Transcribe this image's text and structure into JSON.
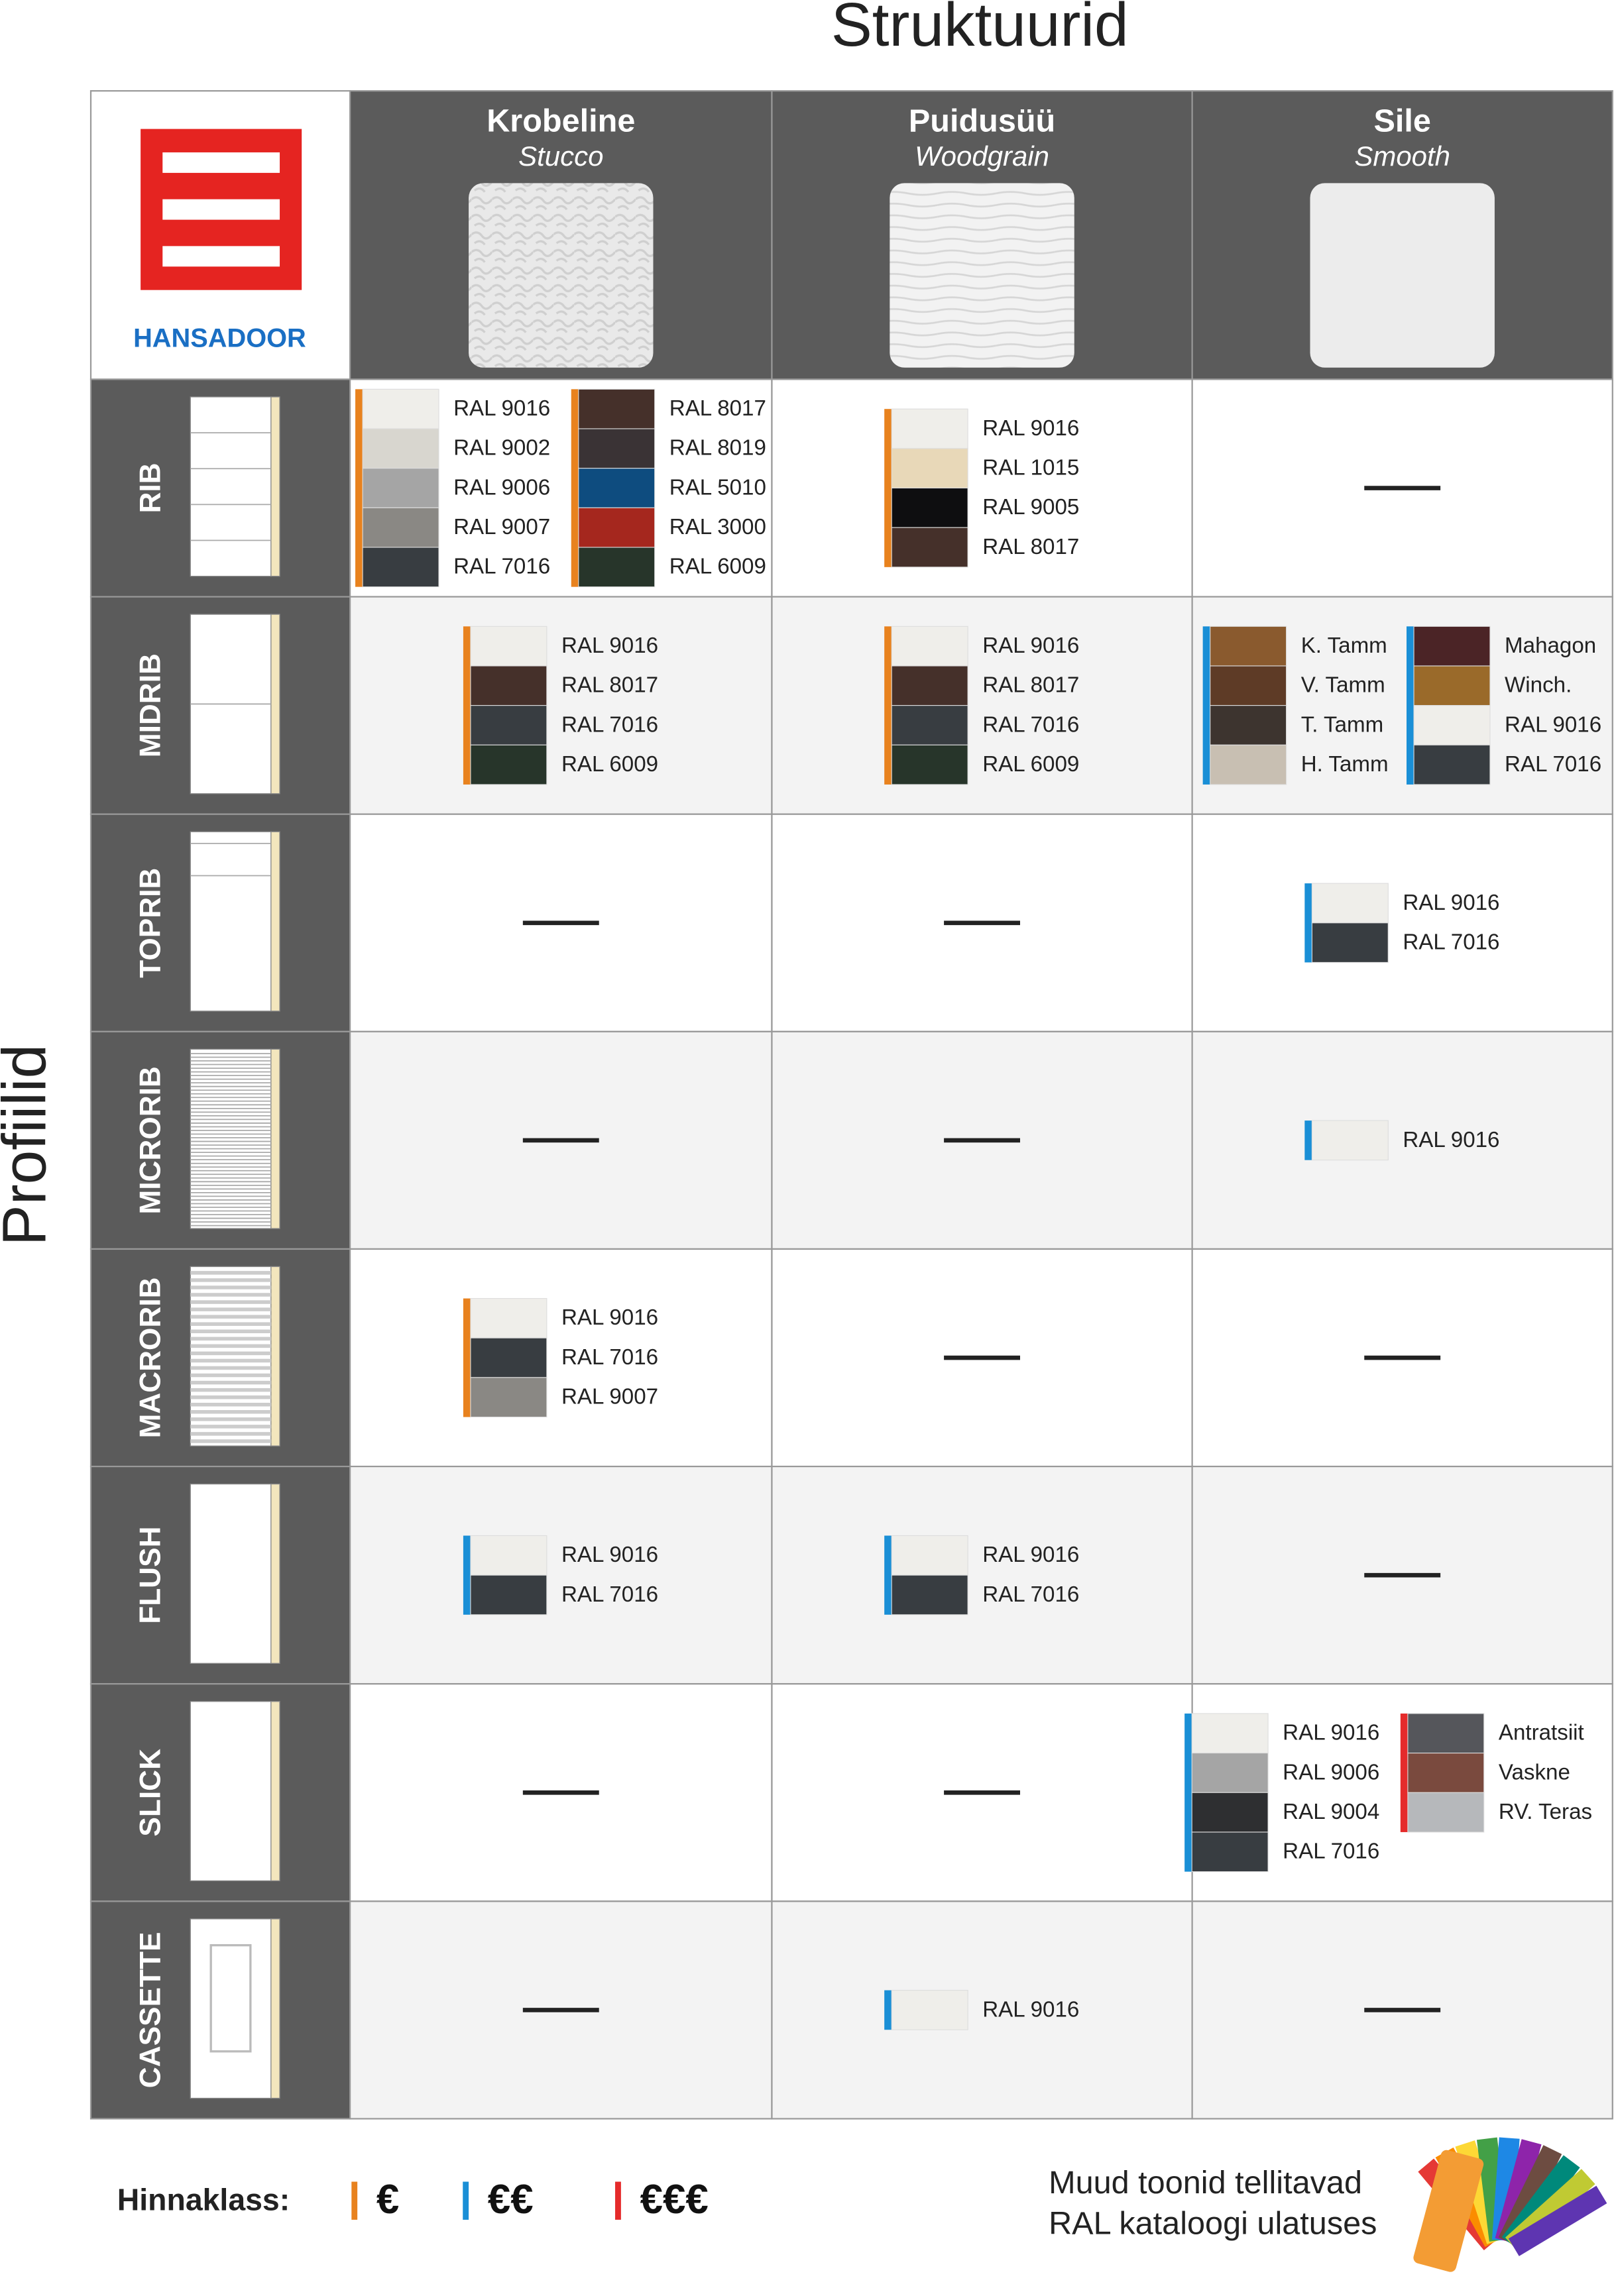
{
  "title": "Struktuurid",
  "side_label": "Profiilid",
  "logo": "HANSADOOR",
  "columns": [
    {
      "name": "Krobeline",
      "sub": "Stucco"
    },
    {
      "name": "Puidusüü",
      "sub": "Woodgrain"
    },
    {
      "name": "Sile",
      "sub": "Smooth"
    }
  ],
  "rows": [
    {
      "name": "RIB",
      "cells": [
        [
          {
            "tier": 0,
            "swatches": [
              {
                "label": "RAL 9016",
                "color": "#efeeea"
              },
              {
                "label": "RAL 9002",
                "color": "#d8d6cf"
              },
              {
                "label": "RAL 9006",
                "color": "#a5a5a5"
              },
              {
                "label": "RAL 9007",
                "color": "#8a8884"
              },
              {
                "label": "RAL 7016",
                "color": "#383d41"
              }
            ]
          },
          {
            "tier": 0,
            "swatches": [
              {
                "label": "RAL 8017",
                "color": "#45302a"
              },
              {
                "label": "RAL 8019",
                "color": "#3a3335"
              },
              {
                "label": "RAL 5010",
                "color": "#0e4c7f"
              },
              {
                "label": "RAL 3000",
                "color": "#a5271e"
              },
              {
                "label": "RAL 6009",
                "color": "#27352a"
              }
            ]
          }
        ],
        [
          {
            "tier": 0,
            "swatches": [
              {
                "label": "RAL 9016",
                "color": "#efeeea"
              },
              {
                "label": "RAL 1015",
                "color": "#e8d8b8"
              },
              {
                "label": "RAL 9005",
                "color": "#0e0e10"
              },
              {
                "label": "RAL 8017",
                "color": "#45302a"
              }
            ]
          }
        ],
        null
      ]
    },
    {
      "name": "MIDRIB",
      "cells": [
        [
          {
            "tier": 0,
            "swatches": [
              {
                "label": "RAL 9016",
                "color": "#efeeea"
              },
              {
                "label": "RAL 8017",
                "color": "#45302a"
              },
              {
                "label": "RAL 7016",
                "color": "#383d41"
              },
              {
                "label": "RAL 6009",
                "color": "#27352a"
              }
            ]
          }
        ],
        [
          {
            "tier": 0,
            "swatches": [
              {
                "label": "RAL 9016",
                "color": "#efeeea"
              },
              {
                "label": "RAL 8017",
                "color": "#45302a"
              },
              {
                "label": "RAL 7016",
                "color": "#383d41"
              },
              {
                "label": "RAL 6009",
                "color": "#27352a"
              }
            ]
          }
        ],
        [
          {
            "tier": 1,
            "swatches": [
              {
                "label": "K. Tamm",
                "color": "#8a5a2e"
              },
              {
                "label": "V. Tamm",
                "color": "#5e3b26"
              },
              {
                "label": "T. Tamm",
                "color": "#3d342f"
              },
              {
                "label": "H. Tamm",
                "color": "#c8bfb2"
              }
            ]
          },
          {
            "tier": 1,
            "swatches": [
              {
                "label": "Mahagon",
                "color": "#4b2426"
              },
              {
                "label": "Winch.",
                "color": "#9a6a2a"
              },
              {
                "label": "RAL 9016",
                "color": "#efeeea"
              },
              {
                "label": "RAL 7016",
                "color": "#383d41"
              }
            ]
          }
        ]
      ]
    },
    {
      "name": "TOPRIB",
      "cells": [
        null,
        null,
        [
          {
            "tier": 1,
            "swatches": [
              {
                "label": "RAL 9016",
                "color": "#efeeea"
              },
              {
                "label": "RAL 7016",
                "color": "#383d41"
              }
            ]
          }
        ]
      ]
    },
    {
      "name": "MICRORIB",
      "cells": [
        null,
        null,
        [
          {
            "tier": 1,
            "swatches": [
              {
                "label": "RAL 9016",
                "color": "#efeeea"
              }
            ]
          }
        ]
      ]
    },
    {
      "name": "MACRORIB",
      "cells": [
        [
          {
            "tier": 0,
            "swatches": [
              {
                "label": "RAL 9016",
                "color": "#efeeea"
              },
              {
                "label": "RAL 7016",
                "color": "#383d41"
              },
              {
                "label": "RAL 9007",
                "color": "#8a8884"
              }
            ]
          }
        ],
        null,
        null
      ]
    },
    {
      "name": "FLUSH",
      "cells": [
        [
          {
            "tier": 1,
            "swatches": [
              {
                "label": "RAL 9016",
                "color": "#efeeea"
              },
              {
                "label": "RAL 7016",
                "color": "#383d41"
              }
            ]
          }
        ],
        [
          {
            "tier": 1,
            "swatches": [
              {
                "label": "RAL 9016",
                "color": "#efeeea"
              },
              {
                "label": "RAL 7016",
                "color": "#383d41"
              }
            ]
          }
        ],
        null
      ]
    },
    {
      "name": "SLICK",
      "cells": [
        null,
        null,
        [
          {
            "tier": 1,
            "swatches": [
              {
                "label": "RAL 9016",
                "color": "#efeeea"
              },
              {
                "label": "RAL 9006",
                "color": "#a5a5a5"
              },
              {
                "label": "RAL 9004",
                "color": "#2e2f31"
              },
              {
                "label": "RAL 7016",
                "color": "#383d41"
              }
            ]
          },
          {
            "tier": 2,
            "swatches": [
              {
                "label": "Antratsiit",
                "color": "#55565b"
              },
              {
                "label": "Vaskne",
                "color": "#7a4a3e"
              },
              {
                "label": "RV. Teras",
                "color": "#b6b8bb"
              }
            ]
          }
        ]
      ]
    },
    {
      "name": "CASSETTE",
      "cells": [
        null,
        [
          {
            "tier": 1,
            "swatches": [
              {
                "label": "RAL 9016",
                "color": "#efeeea"
              }
            ]
          }
        ],
        null
      ]
    }
  ],
  "legend": {
    "label": "Hinnaklass:",
    "tiers": [
      {
        "symbol": "€",
        "color": "#e8821e"
      },
      {
        "symbol": "€€",
        "color": "#1a8fd6"
      },
      {
        "symbol": "€€€",
        "color": "#e52b2b"
      }
    ]
  },
  "footer": [
    "Muud toonid tellitavad",
    "RAL kataloogi ulatuses"
  ]
}
